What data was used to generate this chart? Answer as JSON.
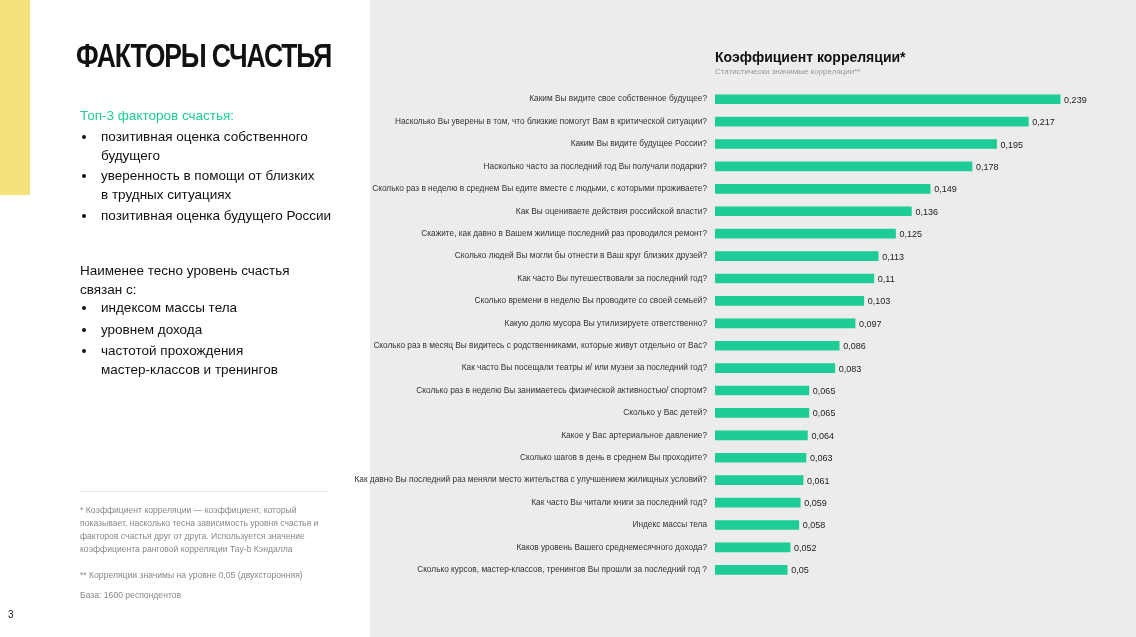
{
  "chart_data": {
    "type": "bar",
    "orientation": "horizontal",
    "title": "Коэффициент корреляции*",
    "subtitle": "Статистически значимые корреляции**",
    "categories": [
      "Каким Вы видите свое собственное будущее?",
      "Насколько Вы уверены в том, что близкие помогут Вам в критической ситуации?",
      "Каким Вы видите будущее России?",
      "Насколько часто за последний год Вы получали подарки?",
      "Сколько раз в неделю в среднем Вы едите вместе с людьми, с которыми проживаете?",
      "Как Вы оцениваете действия российской власти?",
      "Скажите, как давно в Вашем жилище последний раз проводился ремонт?",
      "Сколько людей Вы могли бы отнести в Ваш круг близких друзей?",
      "Как часто Вы путешествовали за последний год?",
      "Сколько времени в неделю Вы проводите со своей семьей?",
      "Какую долю мусора Вы утилизируете ответственно?",
      "Сколько раз в месяц Вы видитесь с родственниками, которые живут отдельно от Вас?",
      "Как часто Вы посещали театры и/ или музеи за последний год?",
      "Сколько раз в неделю Вы занимаетесь физической активностью/ спортом?",
      "Сколько у Вас детей?",
      "Какое у Вас артериальное давление?",
      "Сколько шагов в день в среднем Вы проходите?",
      "Как давно Вы последний раз меняли место жительства с улучшением жилищных условий?",
      "Как часто Вы читали книги за последний год?",
      "Индекс массы тела",
      "Каков уровень Вашего среднемесячного дохода?",
      "Сколько курсов, мастер-классов, тренингов Вы прошли за последний год ?"
    ],
    "values": [
      0.239,
      0.217,
      0.195,
      0.178,
      0.149,
      0.136,
      0.125,
      0.113,
      0.11,
      0.103,
      0.097,
      0.086,
      0.083,
      0.065,
      0.065,
      0.064,
      0.063,
      0.061,
      0.059,
      0.058,
      0.052,
      0.05
    ],
    "value_labels": [
      "0,239",
      "0,217",
      "0,195",
      "0,178",
      "0,149",
      "0,136",
      "0,125",
      "0,113",
      "0,11",
      "0,103",
      "0,097",
      "0,086",
      "0,083",
      "0,065",
      "0,065",
      "0,064",
      "0,063",
      "0,061",
      "0,059",
      "0,058",
      "0,052",
      "0,05"
    ],
    "color": "#1dcc96",
    "tick_labels": "y",
    "grid": false,
    "legend": false,
    "annotations": [
      "ФАКТОРЫ СЧАСТЬЯ",
      "Топ-3 факторов счастья:",
      "позитивная оценка собственного будущего",
      "уверенность в помощи от близких в трудных ситуациях",
      "позитивная оценка будущего России",
      "Наименее тесно уровень счастья связан с:",
      "индексом массы тела",
      "уровнем дохода",
      "частотой прохождения мастер-классов и тренингов",
      "* Коэффициент корреляции — коэффициент, который показывает, насколько тесна зависимость уровня счастья и факторов счастья друг от друга. Используется значение коэффициента ранговой корреляции Тау-b Кэндалла",
      "** Корреляции значимы на уровне 0,05 (двухсторонняя)",
      "База: 1600 респондентов",
      "3"
    ]
  }
}
